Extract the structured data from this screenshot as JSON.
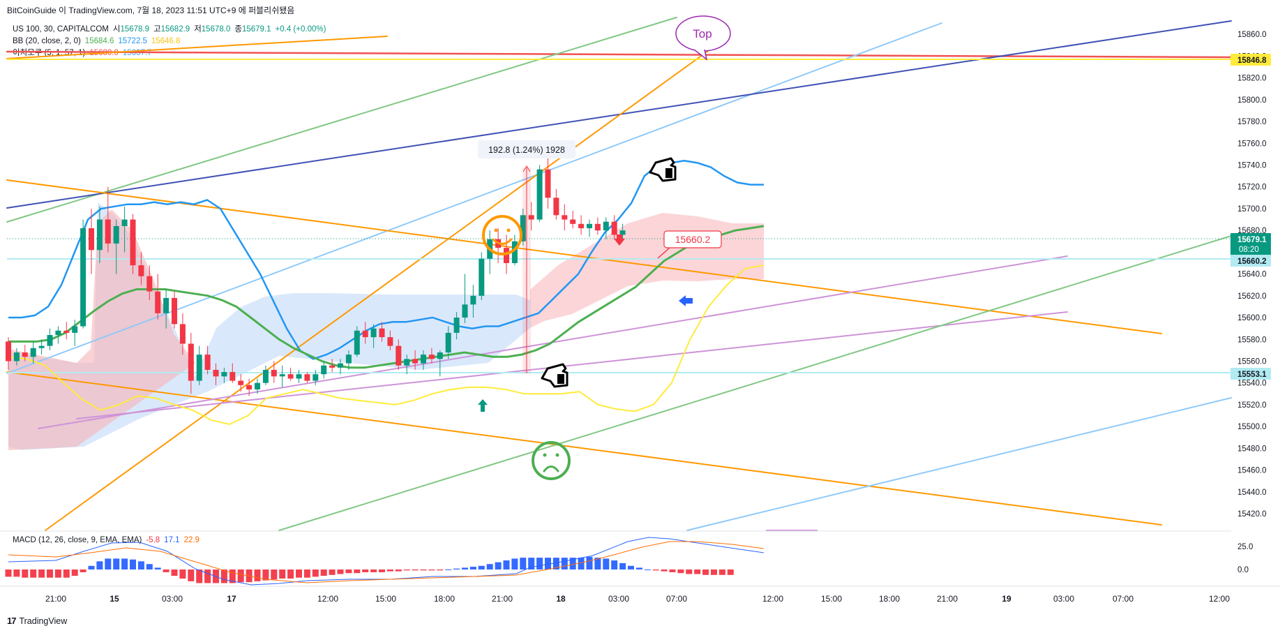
{
  "attribution": "BitCoinGuide 이 TradingView.com, 7월 18, 2023 11:51 UTC+9 에 퍼블리쉬됐음",
  "legend": {
    "symbol": "US 100, 30, CAPITALCOM",
    "open_label": "시",
    "open": "15678.9",
    "high_label": "고",
    "high": "15682.9",
    "low_label": "저",
    "low": "15678.0",
    "close_label": "종",
    "close": "15679.1",
    "change": "+0.4 (+0.00%)",
    "bb_label": "BB (20, close, 2, 0)",
    "bb_basis": "15684.6",
    "bb_upper": "15722.5",
    "bb_lower": "15646.8",
    "ichimoku_label": "이치모쿠 (5, 1, 57, 1)",
    "ichimoku_a": "15680.0",
    "ichimoku_b": "15637.7"
  },
  "macd_legend": {
    "label": "MACD (12, 26, close, 9, EMA, EMA)",
    "hist": "-5.8",
    "macd": "17.1",
    "signal": "22.9"
  },
  "annotations": {
    "measure": "192.8 (1.24%) 1928",
    "top_callout": "Top",
    "price_note": "15660.2"
  },
  "price_tags": {
    "last": "15679.1",
    "countdown": "08:20",
    "level_top": "15846.8",
    "level_mid": "15660.2",
    "level_low": "15553.1"
  },
  "footer": {
    "brand": "TradingView",
    "logo": "17"
  },
  "colors": {
    "up": "#089981",
    "down": "#f23645",
    "bb_upper": "#2196f3",
    "bb_basis": "#4caf50",
    "bb_lower": "#ffeb3b",
    "cloud": "#bbd5f7",
    "cloud_red": "#f7b2b8",
    "orange": "#ff9800",
    "purple": "#ce93d8",
    "green_line": "#81c784",
    "lightblue": "#90caf9",
    "navy": "#3f51b5",
    "red_line": "#ef5350"
  },
  "chart_data": {
    "type": "candlestick",
    "price_axis": {
      "ticks": [
        15860,
        15840,
        15820,
        15800,
        15780,
        15760,
        15740,
        15720,
        15700,
        15680,
        15660,
        15640,
        15620,
        15600,
        15580,
        15560,
        15540,
        15520,
        15500,
        15480,
        15460,
        15440,
        15420
      ],
      "ylim": [
        15410,
        15870
      ]
    },
    "macd_axis": {
      "ticks": [
        25.0,
        0.0
      ]
    },
    "time_labels": [
      "21:00",
      "15",
      "03:00",
      "17",
      "12:00",
      "15:00",
      "18:00",
      "21:00",
      "18",
      "03:00",
      "07:00",
      "12:00",
      "15:00",
      "18:00",
      "21:00",
      "19",
      "03:00",
      "07:00",
      "12:00"
    ],
    "candles": [
      [
        15578,
        15582,
        15552,
        15560
      ],
      [
        15560,
        15572,
        15556,
        15568
      ],
      [
        15568,
        15575,
        15560,
        15564
      ],
      [
        15564,
        15578,
        15558,
        15572
      ],
      [
        15572,
        15580,
        15566,
        15574
      ],
      [
        15574,
        15590,
        15570,
        15584
      ],
      [
        15584,
        15592,
        15576,
        15588
      ],
      [
        15588,
        15596,
        15580,
        15586
      ],
      [
        15586,
        15598,
        15574,
        15592
      ],
      [
        15592,
        15690,
        15590,
        15682
      ],
      [
        15682,
        15700,
        15640,
        15662
      ],
      [
        15662,
        15702,
        15650,
        15690
      ],
      [
        15690,
        15720,
        15660,
        15668
      ],
      [
        15668,
        15690,
        15640,
        15684
      ],
      [
        15684,
        15702,
        15660,
        15690
      ],
      [
        15690,
        15695,
        15640,
        15648
      ],
      [
        15648,
        15660,
        15630,
        15638
      ],
      [
        15638,
        15648,
        15616,
        15624
      ],
      [
        15624,
        15640,
        15598,
        15604
      ],
      [
        15604,
        15626,
        15590,
        15618
      ],
      [
        15618,
        15624,
        15590,
        15594
      ],
      [
        15594,
        15604,
        15566,
        15576
      ],
      [
        15576,
        15586,
        15530,
        15542
      ],
      [
        15542,
        15574,
        15538,
        15566
      ],
      [
        15566,
        15574,
        15548,
        15552
      ],
      [
        15552,
        15558,
        15538,
        15546
      ],
      [
        15546,
        15554,
        15540,
        15550
      ],
      [
        15550,
        15558,
        15540,
        15542
      ],
      [
        15542,
        15548,
        15532,
        15538
      ],
      [
        15538,
        15544,
        15528,
        15534
      ],
      [
        15534,
        15544,
        15530,
        15540
      ],
      [
        15540,
        15556,
        15538,
        15552
      ],
      [
        15552,
        15560,
        15540,
        15546
      ],
      [
        15546,
        15556,
        15536,
        15548
      ],
      [
        15548,
        15554,
        15542,
        15544
      ],
      [
        15544,
        15552,
        15540,
        15548
      ],
      [
        15548,
        15550,
        15540,
        15542
      ],
      [
        15542,
        15552,
        15538,
        15548
      ],
      [
        15548,
        15560,
        15544,
        15556
      ],
      [
        15556,
        15562,
        15550,
        15554
      ],
      [
        15554,
        15562,
        15548,
        15558
      ],
      [
        15558,
        15570,
        15552,
        15566
      ],
      [
        15566,
        15592,
        15564,
        15588
      ],
      [
        15588,
        15596,
        15576,
        15582
      ],
      [
        15582,
        15594,
        15572,
        15590
      ],
      [
        15590,
        15596,
        15578,
        15582
      ],
      [
        15582,
        15588,
        15570,
        15574
      ],
      [
        15574,
        15580,
        15552,
        15556
      ],
      [
        15556,
        15566,
        15548,
        15562
      ],
      [
        15562,
        15570,
        15552,
        15558
      ],
      [
        15558,
        15570,
        15552,
        15566
      ],
      [
        15566,
        15572,
        15558,
        15562
      ],
      [
        15562,
        15570,
        15546,
        15568
      ],
      [
        15568,
        15592,
        15562,
        15586
      ],
      [
        15586,
        15605,
        15580,
        15600
      ],
      [
        15600,
        15640,
        15595,
        15612
      ],
      [
        15612,
        15630,
        15600,
        15620
      ],
      [
        15620,
        15660,
        15616,
        15654
      ],
      [
        15654,
        15680,
        15640,
        15672
      ],
      [
        15672,
        15682,
        15650,
        15664
      ],
      [
        15664,
        15676,
        15640,
        15650
      ],
      [
        15650,
        15676,
        15648,
        15670
      ],
      [
        15670,
        15700,
        15666,
        15694
      ],
      [
        15694,
        15706,
        15680,
        15690
      ],
      [
        15690,
        15740,
        15688,
        15736
      ],
      [
        15736,
        15748,
        15700,
        15710
      ],
      [
        15710,
        15718,
        15690,
        15694
      ],
      [
        15694,
        15704,
        15680,
        15690
      ],
      [
        15690,
        15698,
        15682,
        15686
      ],
      [
        15686,
        15694,
        15676,
        15682
      ],
      [
        15682,
        15690,
        15674,
        15686
      ],
      [
        15686,
        15692,
        15676,
        15680
      ],
      [
        15680,
        15692,
        15672,
        15688
      ],
      [
        15688,
        15694,
        15672,
        15676
      ],
      [
        15676,
        15686,
        15672,
        15680
      ]
    ],
    "bb_upper": [
      15600,
      15600,
      15602,
      15610,
      15630,
      15660,
      15690,
      15700,
      15702,
      15704,
      15704,
      15706,
      15704,
      15706,
      15704,
      15708,
      15700,
      15680,
      15660,
      15640,
      15615,
      15590,
      15570,
      15562,
      15566,
      15572,
      15580,
      15588,
      15594,
      15596,
      15596,
      15598,
      15600,
      15596,
      15592,
      15590,
      15592,
      15592,
      15596,
      15600,
      15604,
      15616,
      15628,
      15640,
      15660,
      15678,
      15690,
      15705,
      15730,
      15740,
      15742,
      15744,
      15742,
      15738,
      15730,
      15724,
      15722,
      15722
    ],
    "bb_basis": [
      15578,
      15578,
      15578,
      15580,
      15586,
      15596,
      15606,
      15615,
      15622,
      15626,
      15626,
      15626,
      15624,
      15622,
      15620,
      15616,
      15610,
      15600,
      15590,
      15580,
      15572,
      15566,
      15560,
      15556,
      15554,
      15554,
      15556,
      15558,
      15560,
      15562,
      15564,
      15566,
      15568,
      15566,
      15564,
      15564,
      15566,
      15570,
      15576,
      15586,
      15596,
      15604,
      15612,
      15620,
      15628,
      15640,
      15652,
      15660,
      15668,
      15672,
      15676,
      15680,
      15682,
      15684
    ],
    "bb_lower": [
      15564,
      15562,
      15556,
      15540,
      15525,
      15515,
      15520,
      15528,
      15526,
      15520,
      15515,
      15506,
      15502,
      15510,
      15526,
      15530,
      15534,
      15530,
      15526,
      15524,
      15522,
      15520,
      15524,
      15530,
      15534,
      15536,
      15536,
      15534,
      15530,
      15530,
      15530,
      15532,
      15520,
      15516,
      15514,
      15520,
      15540,
      15580,
      15610,
      15630,
      15645,
      15648
    ],
    "levels": [
      15846.8,
      15660.2,
      15553.1
    ]
  }
}
